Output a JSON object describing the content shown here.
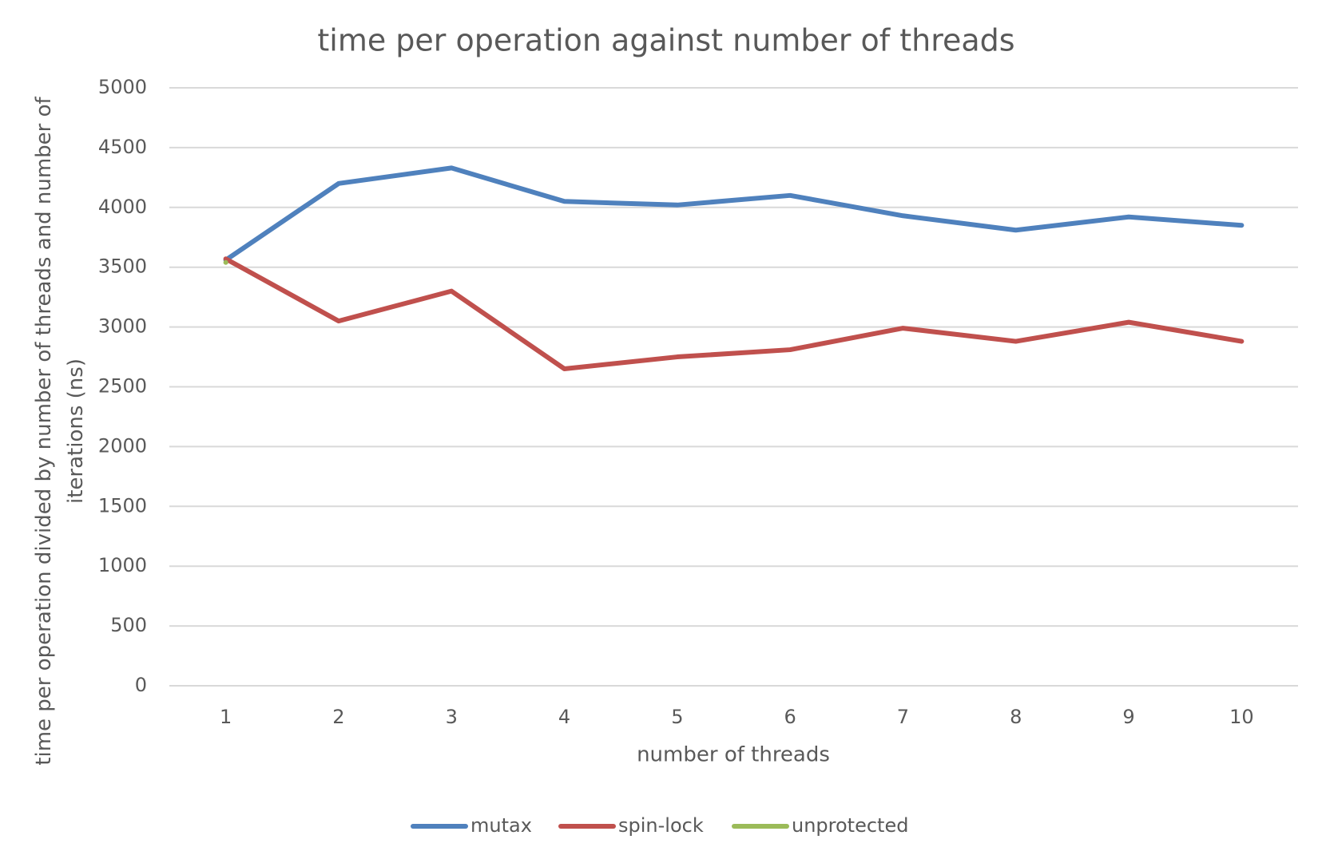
{
  "chart_data": {
    "type": "line",
    "title": "time per operation against number of threads",
    "x_label": "number of threads",
    "y_label": "time per operation divided by number of threads and number of iterations (ns)",
    "categories": [
      "1",
      "2",
      "3",
      "4",
      "5",
      "6",
      "7",
      "8",
      "9",
      "10"
    ],
    "series": [
      {
        "name": "mutax",
        "color": "#4f81bd",
        "values": [
          3560,
          4200,
          4330,
          4050,
          4020,
          4100,
          3930,
          3810,
          3920,
          3850
        ]
      },
      {
        "name": "spin-lock",
        "color": "#c0504d",
        "values": [
          3570,
          3050,
          3300,
          2650,
          2750,
          2810,
          2990,
          2880,
          3040,
          2880
        ]
      },
      {
        "name": "unprotected",
        "color": "#9bbb59",
        "values": [
          3540,
          null,
          null,
          null,
          null,
          null,
          null,
          null,
          null,
          null
        ]
      }
    ],
    "ylim": [
      0,
      5000
    ],
    "yticks": [
      0,
      500,
      1000,
      1500,
      2000,
      2500,
      3000,
      3500,
      4000,
      4500,
      5000
    ],
    "grid": true,
    "legend": "bottom"
  }
}
